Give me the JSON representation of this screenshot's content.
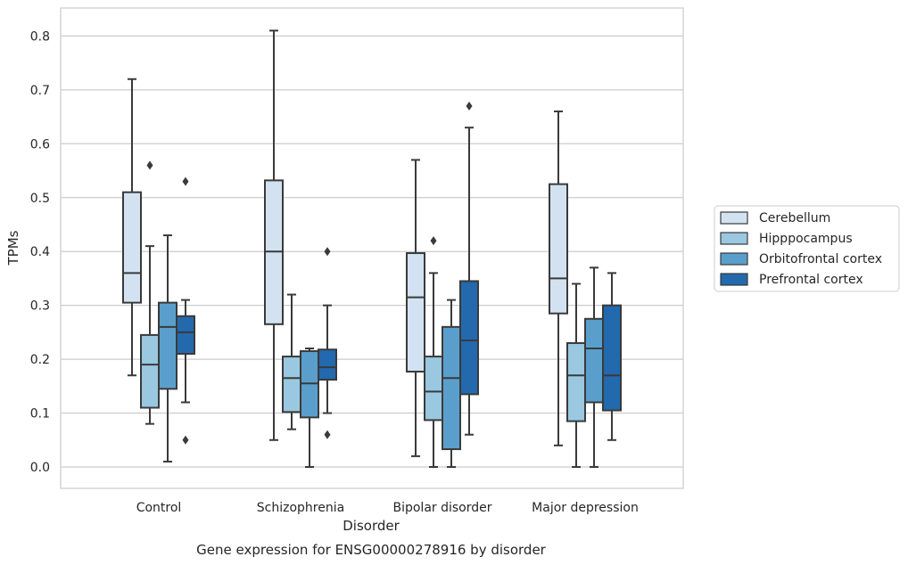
{
  "chart_data": {
    "type": "box",
    "title": "",
    "caption": "Gene expression for ENSG00000278916 by disorder",
    "xlabel": "Disorder",
    "ylabel": "TPMs",
    "ylim": [
      -0.04,
      0.85
    ],
    "yticks": [
      "0.0",
      "0.1",
      "0.2",
      "0.3",
      "0.4",
      "0.5",
      "0.6",
      "0.7",
      "0.8"
    ],
    "grid": "horizontal",
    "legend_position": "right",
    "categories": [
      "Control",
      "Schizophrenia",
      "Bipolar disorder",
      "Major depression"
    ],
    "series": [
      {
        "name": "Cerebellum",
        "color": "#d3e2f1",
        "boxes": [
          {
            "whisker_low": 0.17,
            "q1": 0.305,
            "median": 0.36,
            "q3": 0.51,
            "whisker_high": 0.72,
            "outliers": []
          },
          {
            "whisker_low": 0.05,
            "q1": 0.265,
            "median": 0.4,
            "q3": 0.532,
            "whisker_high": 0.81,
            "outliers": []
          },
          {
            "whisker_low": 0.02,
            "q1": 0.177,
            "median": 0.315,
            "q3": 0.397,
            "whisker_high": 0.57,
            "outliers": []
          },
          {
            "whisker_low": 0.04,
            "q1": 0.285,
            "median": 0.35,
            "q3": 0.525,
            "whisker_high": 0.66,
            "outliers": []
          }
        ]
      },
      {
        "name": "Hipppocampus",
        "color": "#9ac8e0",
        "boxes": [
          {
            "whisker_low": 0.08,
            "q1": 0.11,
            "median": 0.19,
            "q3": 0.245,
            "whisker_high": 0.41,
            "outliers": [
              0.56
            ]
          },
          {
            "whisker_low": 0.07,
            "q1": 0.102,
            "median": 0.165,
            "q3": 0.205,
            "whisker_high": 0.32,
            "outliers": []
          },
          {
            "whisker_low": 0.0,
            "q1": 0.087,
            "median": 0.14,
            "q3": 0.205,
            "whisker_high": 0.36,
            "outliers": [
              0.42
            ]
          },
          {
            "whisker_low": 0.0,
            "q1": 0.085,
            "median": 0.17,
            "q3": 0.23,
            "whisker_high": 0.34,
            "outliers": []
          }
        ]
      },
      {
        "name": "Orbitofrontal cortex",
        "color": "#5a9fcc",
        "boxes": [
          {
            "whisker_low": 0.01,
            "q1": 0.145,
            "median": 0.26,
            "q3": 0.305,
            "whisker_high": 0.43,
            "outliers": []
          },
          {
            "whisker_low": 0.0,
            "q1": 0.092,
            "median": 0.155,
            "q3": 0.215,
            "whisker_high": 0.22,
            "outliers": []
          },
          {
            "whisker_low": 0.0,
            "q1": 0.033,
            "median": 0.165,
            "q3": 0.26,
            "whisker_high": 0.31,
            "outliers": []
          },
          {
            "whisker_low": 0.0,
            "q1": 0.12,
            "median": 0.22,
            "q3": 0.275,
            "whisker_high": 0.37,
            "outliers": []
          }
        ]
      },
      {
        "name": "Prefrontal cortex",
        "color": "#2369ad",
        "boxes": [
          {
            "whisker_low": 0.12,
            "q1": 0.21,
            "median": 0.25,
            "q3": 0.28,
            "whisker_high": 0.31,
            "outliers": [
              0.53,
              0.05
            ]
          },
          {
            "whisker_low": 0.1,
            "q1": 0.162,
            "median": 0.185,
            "q3": 0.218,
            "whisker_high": 0.3,
            "outliers": [
              0.4,
              0.06
            ]
          },
          {
            "whisker_low": 0.06,
            "q1": 0.135,
            "median": 0.235,
            "q3": 0.345,
            "whisker_high": 0.63,
            "outliers": [
              0.67
            ]
          },
          {
            "whisker_low": 0.05,
            "q1": 0.105,
            "median": 0.17,
            "q3": 0.3,
            "whisker_high": 0.36,
            "outliers": []
          }
        ]
      }
    ]
  }
}
